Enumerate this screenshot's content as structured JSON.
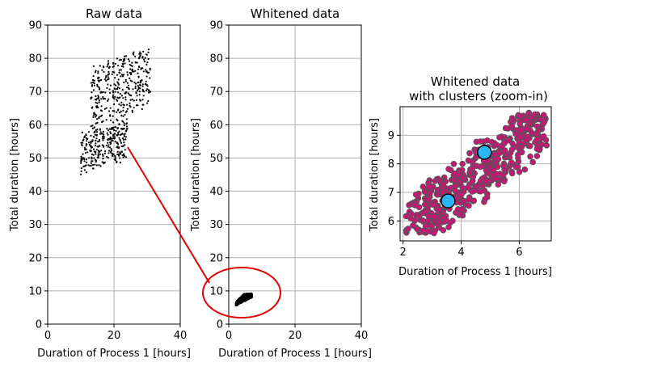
{
  "colors": {
    "raw_points": "#000000",
    "whitened_points": "#000000",
    "cluster_fill": "#cc1477",
    "cluster_edge": "#555555",
    "centroid_fill": "#29b6f6",
    "centroid_edge": "#000000",
    "annotation": "#e00000",
    "grid": "#b0b0b0"
  },
  "chart_data": [
    {
      "type": "scatter",
      "title": "Raw data",
      "xlabel": "Duration of Process 1 [hours]",
      "ylabel": "Total duration [hours]",
      "xlim": [
        0,
        40
      ],
      "ylim": [
        0,
        90
      ],
      "xticks": [
        "0",
        "20",
        "40"
      ],
      "yticks": [
        "0",
        "10",
        "20",
        "30",
        "40",
        "50",
        "60",
        "70",
        "80",
        "90"
      ],
      "grid": true,
      "clusters": [
        {
          "x_range": [
            10,
            24
          ],
          "y_base_range": [
            46,
            58
          ],
          "slope": 0.3,
          "approx_points": 300
        },
        {
          "x_range": [
            13,
            31
          ],
          "y_base_range": [
            60,
            77
          ],
          "slope": 0.35,
          "approx_points": 350
        }
      ]
    },
    {
      "type": "scatter",
      "title": "Whitened data",
      "xlabel": "Duration of Process 1 [hours]",
      "ylabel": "Total duration [hours]",
      "xlim": [
        0,
        40
      ],
      "ylim": [
        0,
        90
      ],
      "xticks": [
        "0",
        "20",
        "40"
      ],
      "yticks": [
        "0",
        "10",
        "20",
        "30",
        "40",
        "50",
        "60",
        "70",
        "80",
        "90"
      ],
      "grid": true,
      "point_region": {
        "x_range": [
          2.2,
          7
        ],
        "y_range": [
          5.6,
          9.8
        ]
      },
      "annotation": {
        "type": "ellipse-callout",
        "ellipse_center": [
          4,
          10
        ],
        "from_point_in_raw": [
          24,
          53
        ]
      }
    },
    {
      "type": "scatter",
      "title": "Whitened data",
      "subtitle": "with clusters (zoom-in)",
      "xlabel": "Duration of Process 1 [hours]",
      "ylabel": "Total duration [hours]",
      "xlim": [
        1.9,
        7.1
      ],
      "ylim": [
        5.3,
        10.0
      ],
      "xticks": [
        "2",
        "4",
        "6"
      ],
      "yticks": [
        "6",
        "7",
        "8",
        "9"
      ],
      "grid": true,
      "centroids": [
        {
          "x": 3.55,
          "y": 6.7
        },
        {
          "x": 4.8,
          "y": 8.4
        }
      ]
    }
  ]
}
